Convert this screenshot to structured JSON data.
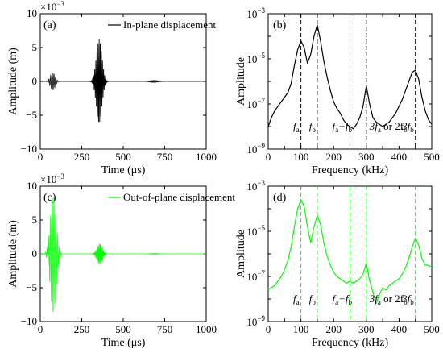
{
  "chart_data": [
    {
      "id": "a",
      "type": "line",
      "panel_label": "(a)",
      "legend": {
        "label": "In-plane displacement",
        "color": "#000000",
        "placement": "top-right"
      },
      "xlabel": "Time (μs)",
      "ylabel": "Amplitude (m)",
      "y_multiplier": "×10",
      "y_multiplier_exp": "−3",
      "xlim": [
        0,
        1000
      ],
      "ylim": [
        -10,
        10
      ],
      "xticks": [
        0,
        250,
        500,
        750,
        1000
      ],
      "yticks": [
        -10,
        -5,
        0,
        5,
        10
      ],
      "xtick_labels": [
        "0",
        "250",
        "500",
        "750",
        "1000"
      ],
      "ytick_labels": [
        "−10",
        "−5",
        "0",
        "5",
        "10"
      ],
      "series_color": "#000000",
      "packets": [
        {
          "center": 75,
          "width": 20,
          "amplitude": 1.3,
          "frequency_khz": 100
        },
        {
          "center": 355,
          "width": 24,
          "amplitude": 6.2,
          "frequency_khz": 150
        },
        {
          "center": 685,
          "width": 35,
          "amplitude": 0.15,
          "frequency_khz": 150
        }
      ]
    },
    {
      "id": "b",
      "type": "line",
      "scale": "log",
      "panel_label": "(b)",
      "xlabel": "Frequency (kHz)",
      "ylabel": "Amplitude",
      "xlim": [
        0,
        500
      ],
      "ylim_log10": [
        -9,
        -3
      ],
      "xticks": [
        0,
        50,
        100,
        150,
        200,
        250,
        300,
        350,
        400,
        450,
        500
      ],
      "xtick_labels": [
        "0",
        "50",
        "100",
        "150",
        "200",
        "250",
        "300",
        "350",
        "400",
        "450",
        "500"
      ],
      "ytick_exponents": [
        -9,
        -7,
        -5,
        -3
      ],
      "ytick_base": "10",
      "ytick_exp_labels": [
        "−9",
        "−7",
        "−5",
        "−3"
      ],
      "series_color": "#000000",
      "x": [
        0,
        10,
        20,
        30,
        40,
        50,
        60,
        70,
        80,
        90,
        100,
        110,
        120,
        130,
        140,
        150,
        160,
        170,
        180,
        190,
        200,
        210,
        220,
        230,
        240,
        250,
        260,
        270,
        280,
        290,
        300,
        310,
        320,
        330,
        340,
        350,
        360,
        370,
        380,
        390,
        400,
        410,
        420,
        430,
        440,
        450,
        460,
        470,
        480,
        490,
        500
      ],
      "y_log10": [
        -8.0,
        -7.6,
        -7.3,
        -7.1,
        -6.9,
        -6.7,
        -6.5,
        -6.1,
        -5.3,
        -4.6,
        -4.2,
        -4.5,
        -5.2,
        -4.8,
        -4.0,
        -3.5,
        -4.2,
        -5.1,
        -5.8,
        -6.4,
        -6.9,
        -7.2,
        -7.4,
        -7.7,
        -7.9,
        -8.0,
        -8.1,
        -7.9,
        -7.6,
        -7.1,
        -6.2,
        -7.0,
        -7.6,
        -7.8,
        -7.9,
        -8.0,
        -7.9,
        -7.8,
        -7.6,
        -7.4,
        -7.1,
        -6.8,
        -6.4,
        -6.0,
        -5.6,
        -5.5,
        -5.9,
        -6.7,
        -7.3,
        -7.7,
        -7.9
      ],
      "reference_lines": [
        {
          "x": 100,
          "label": "f",
          "sub": "a"
        },
        {
          "x": 150,
          "label": "f",
          "sub": "b"
        },
        {
          "x": 250,
          "label": "f",
          "sub": "a",
          "plus": "+f",
          "plus_sub": "b"
        },
        {
          "x": 300,
          "label": "3f",
          "sub": "a",
          "or": " or 2f",
          "or_sub": "b"
        },
        {
          "x": 450,
          "label": "3f",
          "sub": "b"
        }
      ]
    },
    {
      "id": "c",
      "type": "line",
      "panel_label": "(c)",
      "legend": {
        "label": "Out-of-plane displacement",
        "color": "#00ff00",
        "placement": "top-right"
      },
      "xlabel": "Time (μs)",
      "ylabel": "Amplitude (m)",
      "y_multiplier": "×10",
      "y_multiplier_exp": "−3",
      "xlim": [
        0,
        1000
      ],
      "ylim": [
        -10,
        10
      ],
      "xticks": [
        0,
        250,
        500,
        750,
        1000
      ],
      "yticks": [
        -10,
        -5,
        0,
        5,
        10
      ],
      "xtick_labels": [
        "0",
        "250",
        "500",
        "750",
        "1000"
      ],
      "ytick_labels": [
        "−10",
        "−5",
        "0",
        "5",
        "10"
      ],
      "series_color": "#00ff00",
      "packets": [
        {
          "center": 78,
          "width": 24,
          "amplitude": 8.6,
          "frequency_khz": 100
        },
        {
          "center": 358,
          "width": 22,
          "amplitude": 1.5,
          "frequency_khz": 150
        },
        {
          "center": 690,
          "width": 35,
          "amplitude": 0.06,
          "frequency_khz": 150
        }
      ]
    },
    {
      "id": "d",
      "type": "line",
      "scale": "log",
      "panel_label": "(d)",
      "xlabel": "Frequency (kHz)",
      "ylabel": "Amplitude",
      "xlim": [
        0,
        500
      ],
      "ylim_log10": [
        -9,
        -3
      ],
      "xticks": [
        0,
        50,
        100,
        150,
        200,
        250,
        300,
        350,
        400,
        450,
        500
      ],
      "xtick_labels": [
        "0",
        "50",
        "100",
        "150",
        "200",
        "250",
        "300",
        "350",
        "400",
        "450",
        "500"
      ],
      "ytick_exponents": [
        -9,
        -7,
        -5,
        -3
      ],
      "ytick_base": "10",
      "ytick_exp_labels": [
        "−9",
        "−7",
        "−5",
        "−3"
      ],
      "series_color": "#00ff00",
      "x": [
        0,
        10,
        20,
        30,
        40,
        50,
        60,
        70,
        80,
        90,
        100,
        110,
        120,
        130,
        140,
        150,
        160,
        170,
        180,
        190,
        200,
        210,
        220,
        230,
        240,
        250,
        260,
        270,
        280,
        290,
        300,
        310,
        320,
        330,
        340,
        350,
        360,
        370,
        380,
        390,
        400,
        410,
        420,
        430,
        440,
        450,
        460,
        470,
        480,
        490,
        500
      ],
      "y_log10": [
        -7.6,
        -7.5,
        -7.4,
        -7.2,
        -7.0,
        -6.7,
        -6.3,
        -5.7,
        -4.8,
        -4.0,
        -3.6,
        -3.9,
        -4.8,
        -5.5,
        -4.8,
        -4.3,
        -4.7,
        -5.5,
        -6.1,
        -6.5,
        -6.8,
        -7.0,
        -7.1,
        -7.2,
        -7.3,
        -7.2,
        -7.3,
        -7.2,
        -7.1,
        -6.9,
        -6.4,
        -7.2,
        -7.7,
        -8.2,
        -7.8,
        -7.5,
        -7.6,
        -7.4,
        -7.3,
        -7.2,
        -7.1,
        -6.9,
        -6.6,
        -6.2,
        -5.7,
        -5.3,
        -5.6,
        -6.2,
        -6.5,
        -6.5,
        -6.6
      ],
      "reference_lines": [
        {
          "x": 100,
          "label": "f",
          "sub": "a"
        },
        {
          "x": 150,
          "label": "f",
          "sub": "b"
        },
        {
          "x": 250,
          "label": "f",
          "sub": "a",
          "plus": "+f",
          "plus_sub": "b"
        },
        {
          "x": 300,
          "label": "3f",
          "sub": "a",
          "or": " or 2f",
          "or_sub": "b"
        },
        {
          "x": 450,
          "label": "3f",
          "sub": "b"
        }
      ]
    }
  ]
}
